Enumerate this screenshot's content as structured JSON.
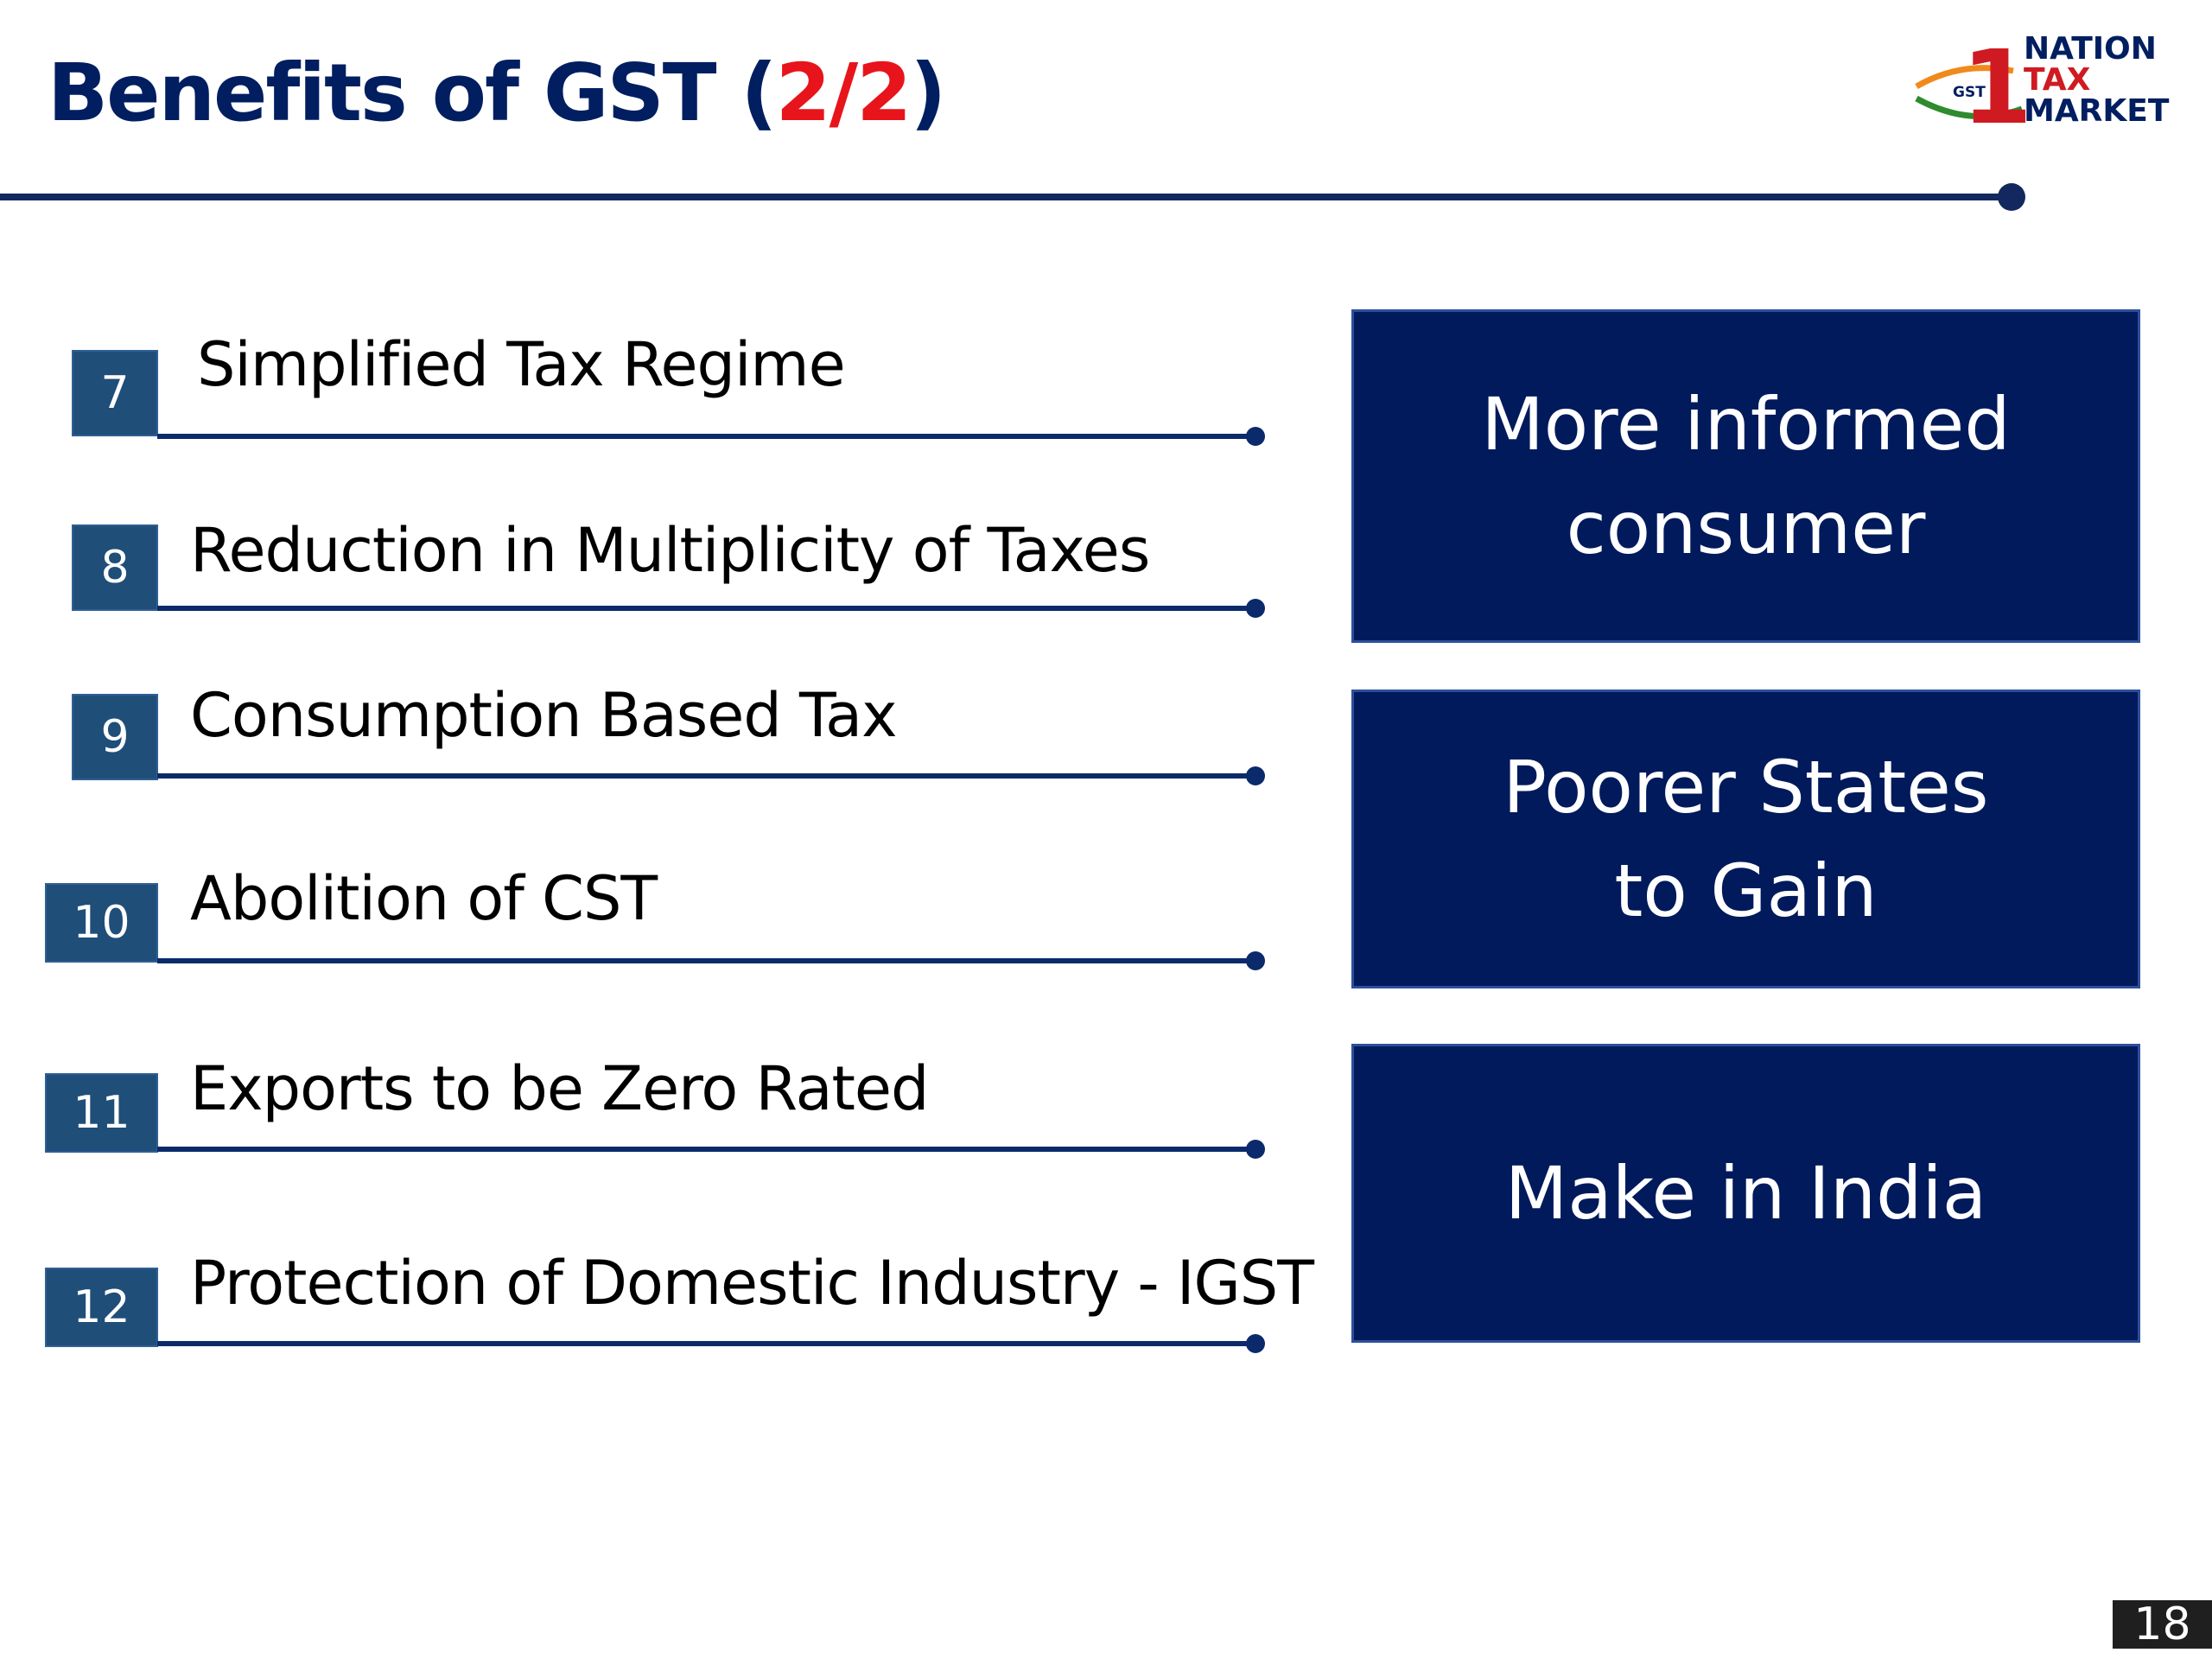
{
  "slide": {
    "title_main": "Benefits of GST (",
    "title_accent": "2/2",
    "title_close": ")",
    "page_number": "18"
  },
  "logo": {
    "line1": "NATION",
    "line2": "TAX",
    "line3": "MARKET",
    "badge": "GST",
    "numeral": "1",
    "colors": {
      "brand_red": "#d01a21",
      "brand_navy": "#001e60",
      "saffron": "#f08a1c",
      "green": "#2e8b2e"
    }
  },
  "benefits": [
    {
      "number": "7",
      "label": "Simplified Tax Regime"
    },
    {
      "number": "8",
      "label": "Reduction in Multiplicity of Taxes"
    },
    {
      "number": "9",
      "label": "Consumption Based Tax"
    },
    {
      "number": "10",
      "label": "Abolition of CST"
    },
    {
      "number": "11",
      "label": "Exports to be Zero Rated"
    },
    {
      "number": "12",
      "label": "Protection of Domestic Industry - IGST"
    }
  ],
  "panels": [
    {
      "text": "More informed\nconsumer"
    },
    {
      "text": "Poorer States\nto Gain"
    },
    {
      "text": "Make in India"
    }
  ],
  "colors": {
    "title_navy": "#001e60",
    "title_accent_red": "#e8141b",
    "number_box": "#1f4e79",
    "panel_navy": "#001a5c",
    "rule_navy": "#12285e"
  }
}
